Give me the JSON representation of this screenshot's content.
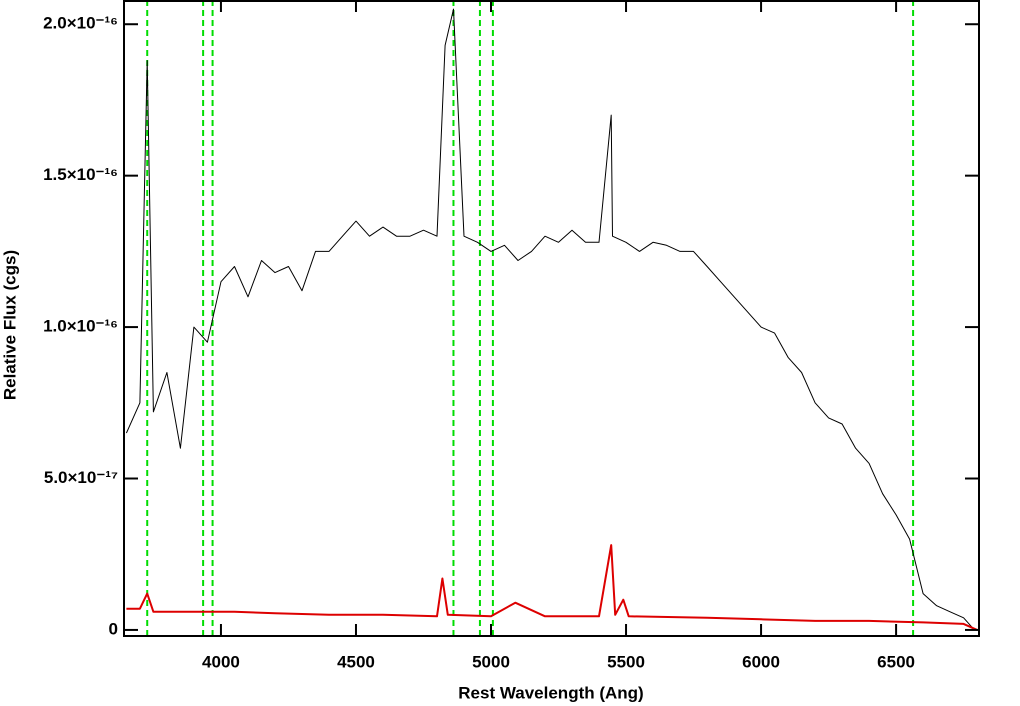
{
  "chart_data": {
    "type": "line",
    "xlabel": "Rest Wavelength (Ang)",
    "ylabel": "Relative Flux (cgs)",
    "xlim": [
      3641,
      6807
    ],
    "ylim": [
      -2e-18,
      2.08e-16
    ],
    "xticks": [
      4000,
      4500,
      5000,
      5500,
      6000,
      6500
    ],
    "yticks": [
      0,
      {
        "value": 5e-17,
        "label": "5.0×10⁻¹⁷"
      },
      {
        "value": 1e-16,
        "label": "1.0×10⁻¹⁶"
      },
      {
        "value": 1.5e-16,
        "label": "1.5×10⁻¹⁶"
      },
      {
        "value": 2e-16,
        "label": "2.0×10⁻¹⁶"
      }
    ],
    "vlines": {
      "color": "#00dd00",
      "x": [
        3727,
        3934,
        3969,
        4861,
        4959,
        5007,
        6563
      ]
    },
    "series": [
      {
        "color": "#000000",
        "x": [
          3650,
          3700,
          3727,
          3750,
          3800,
          3850,
          3900,
          3950,
          4000,
          4050,
          4100,
          4150,
          4200,
          4250,
          4300,
          4350,
          4400,
          4450,
          4500,
          4550,
          4600,
          4650,
          4700,
          4750,
          4800,
          4830,
          4861,
          4900,
          4950,
          5000,
          5050,
          5100,
          5150,
          5200,
          5250,
          5300,
          5350,
          5400,
          5445,
          5450,
          5500,
          5550,
          5600,
          5650,
          5700,
          5750,
          5800,
          5850,
          5900,
          5950,
          6000,
          6050,
          6100,
          6150,
          6200,
          6250,
          6300,
          6350,
          6400,
          6450,
          6500,
          6550,
          6600,
          6650,
          6700,
          6750,
          6790
        ],
        "values": [
          6.5e-17,
          7.5e-17,
          1.88e-16,
          7.2e-17,
          8.5e-17,
          6e-17,
          1e-16,
          9.5e-17,
          1.15e-16,
          1.2e-16,
          1.1e-16,
          1.22e-16,
          1.18e-16,
          1.2e-16,
          1.12e-16,
          1.25e-16,
          1.25e-16,
          1.3e-16,
          1.35e-16,
          1.3e-16,
          1.33e-16,
          1.3e-16,
          1.3e-16,
          1.32e-16,
          1.3e-16,
          1.93e-16,
          2.05e-16,
          1.3e-16,
          1.28e-16,
          1.25e-16,
          1.27e-16,
          1.22e-16,
          1.25e-16,
          1.3e-16,
          1.28e-16,
          1.32e-16,
          1.28e-16,
          1.28e-16,
          1.7e-16,
          1.3e-16,
          1.28e-16,
          1.25e-16,
          1.28e-16,
          1.27e-16,
          1.25e-16,
          1.25e-16,
          1.2e-16,
          1.15e-16,
          1.1e-16,
          1.05e-16,
          1e-16,
          9.8e-17,
          9e-17,
          8.5e-17,
          7.5e-17,
          7e-17,
          6.8e-17,
          6e-17,
          5.5e-17,
          4.5e-17,
          3.8e-17,
          3e-17,
          1.2e-17,
          8e-18,
          6e-18,
          4e-18,
          0
        ]
      },
      {
        "color": "#dd0000",
        "x": [
          3650,
          3700,
          3727,
          3750,
          3900,
          4050,
          4200,
          4400,
          4600,
          4800,
          4820,
          4840,
          5000,
          5090,
          5200,
          5400,
          5445,
          5460,
          5490,
          5510,
          5800,
          6000,
          6200,
          6400,
          6600,
          6750,
          6800
        ],
        "values": [
          7e-18,
          7e-18,
          1.2e-17,
          6e-18,
          6e-18,
          6e-18,
          5.5e-18,
          5e-18,
          5e-18,
          4.5e-18,
          1.7e-17,
          5e-18,
          4.5e-18,
          9e-18,
          4.5e-18,
          4.5e-18,
          2.8e-17,
          5e-18,
          1e-17,
          4.5e-18,
          4e-18,
          3.5e-18,
          3e-18,
          3e-18,
          2.5e-18,
          2e-18,
          0
        ]
      }
    ]
  }
}
